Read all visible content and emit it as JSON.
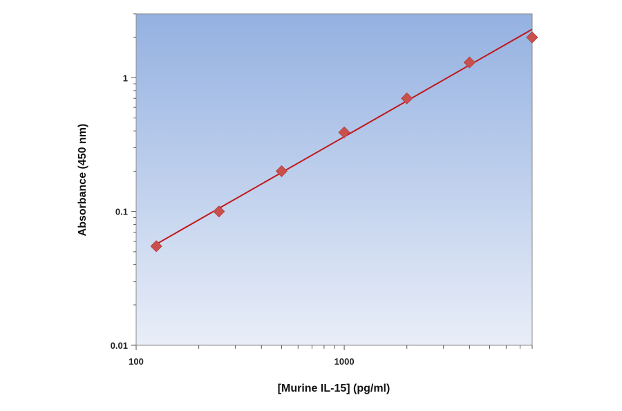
{
  "chart_data": {
    "type": "scatter",
    "title": "",
    "xlabel": "[Murine IL-15] (pg/ml)",
    "ylabel": "Absorbance (450 nm)",
    "x_scale": "log",
    "y_scale": "log",
    "xlim": [
      100,
      8000
    ],
    "ylim": [
      0.01,
      3
    ],
    "x_ticks": [
      {
        "value": 100,
        "label": "100"
      },
      {
        "value": 1000,
        "label": "1000"
      }
    ],
    "y_ticks": [
      {
        "value": 0.01,
        "label": "0.01"
      },
      {
        "value": 0.1,
        "label": "0.1"
      },
      {
        "value": 1,
        "label": "1"
      }
    ],
    "grid": false,
    "legend": "none",
    "series": [
      {
        "marker": "diamond",
        "color": "#c9504c",
        "points": [
          {
            "x": 125,
            "y": 0.055
          },
          {
            "x": 250,
            "y": 0.1
          },
          {
            "x": 500,
            "y": 0.2
          },
          {
            "x": 1000,
            "y": 0.39
          },
          {
            "x": 2000,
            "y": 0.7
          },
          {
            "x": 4000,
            "y": 1.3
          },
          {
            "x": 8000,
            "y": 2.0
          }
        ]
      }
    ],
    "fit_line": {
      "color": "#c0181b",
      "from": {
        "x": 125,
        "y": 0.057
      },
      "to": {
        "x": 8000,
        "y": 2.3
      }
    },
    "plot_background": {
      "top": "#94b1e1",
      "bottom": "#e9eef8"
    }
  }
}
